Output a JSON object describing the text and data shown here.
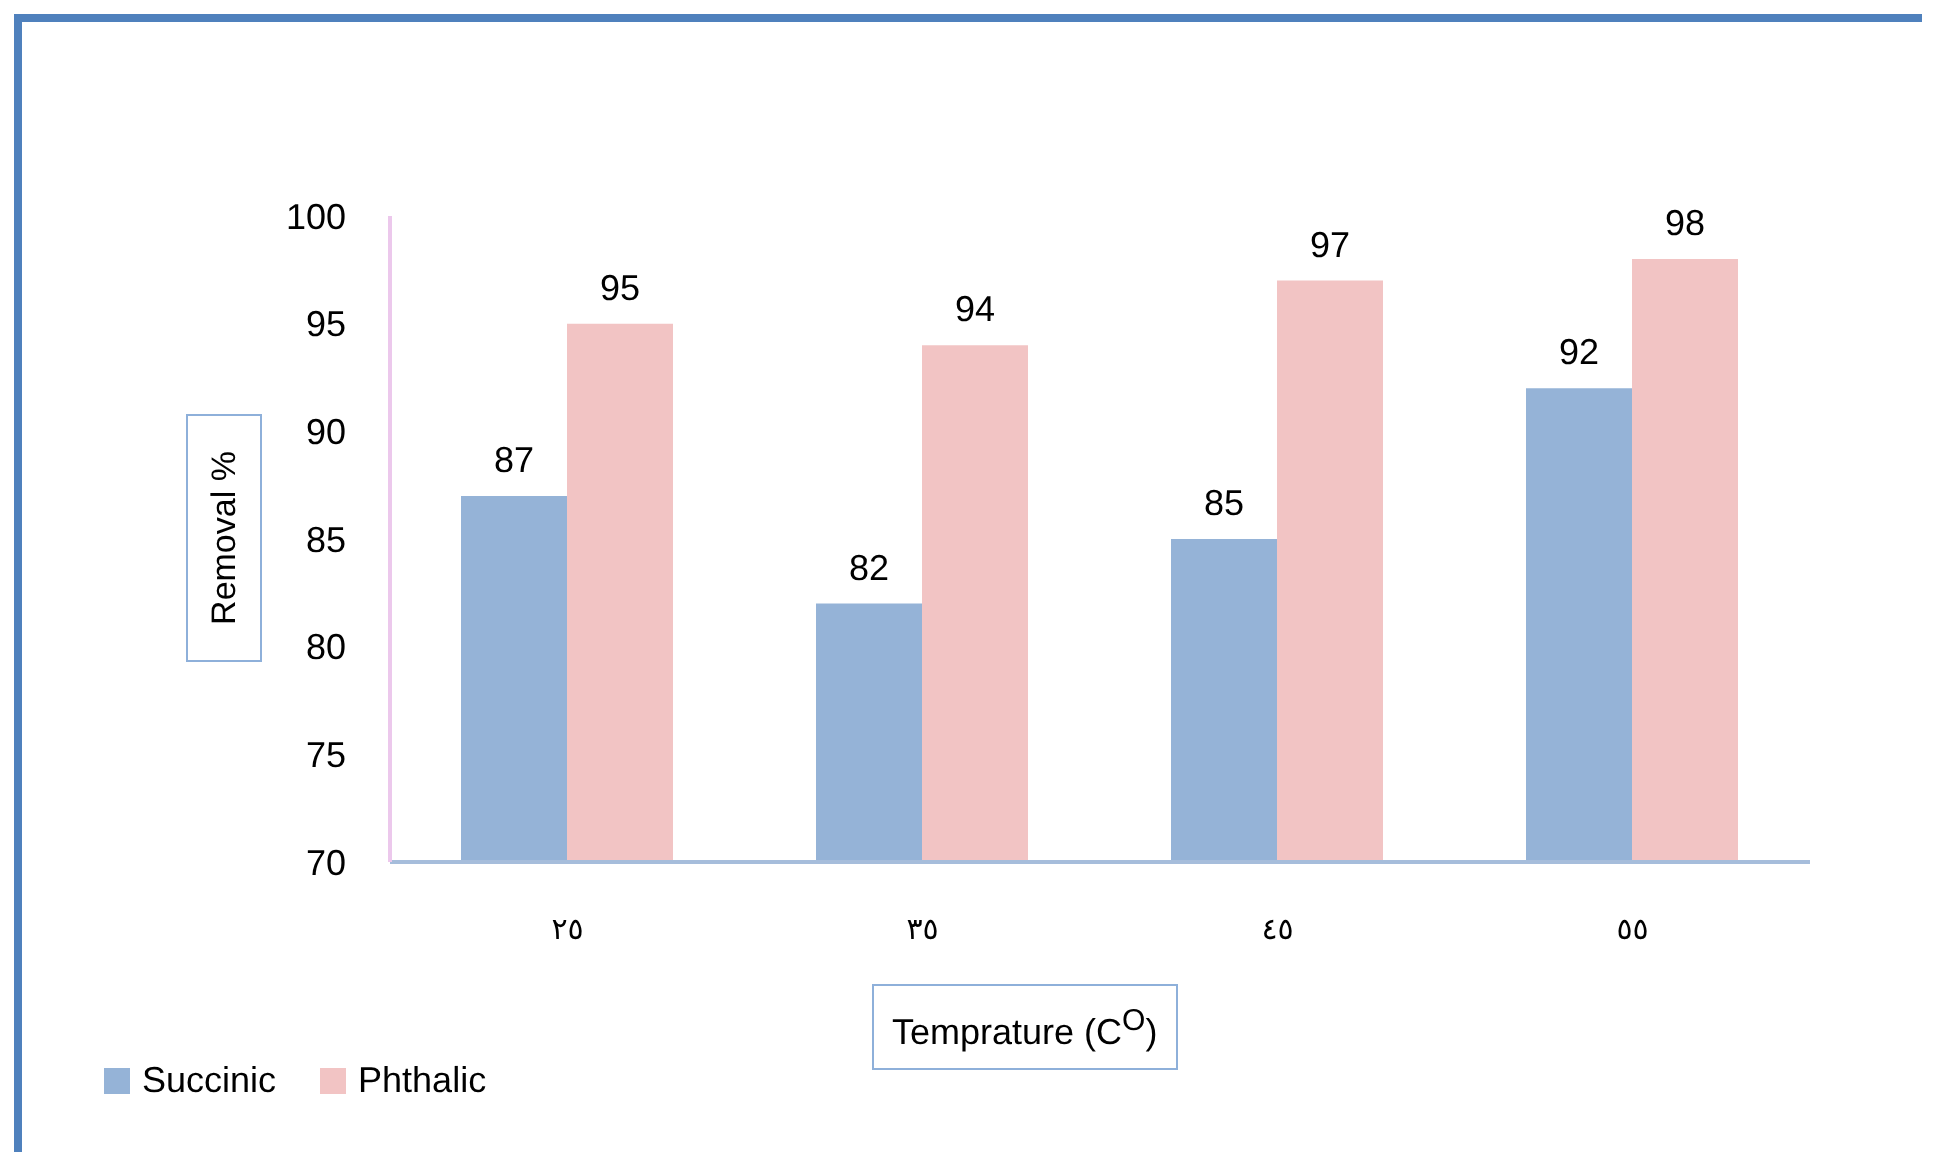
{
  "chart_data": {
    "type": "bar",
    "xlabel": "Temprature (C$^{O}$)",
    "ylabel": "Removal %",
    "categories": [
      "٢٥",
      "٣٥",
      "٤٥",
      "٥٥"
    ],
    "series": [
      {
        "name": "Succinic",
        "color": "#95b3d7",
        "values": [
          87,
          82,
          85,
          92
        ]
      },
      {
        "name": "Phthalic",
        "color": "#f2c4c4",
        "values": [
          95,
          94,
          97,
          98
        ]
      }
    ],
    "ylim": [
      70,
      100
    ],
    "yticks": [
      70,
      75,
      80,
      85,
      90,
      95,
      100
    ],
    "data_labels": true,
    "legend": "bottom left"
  }
}
